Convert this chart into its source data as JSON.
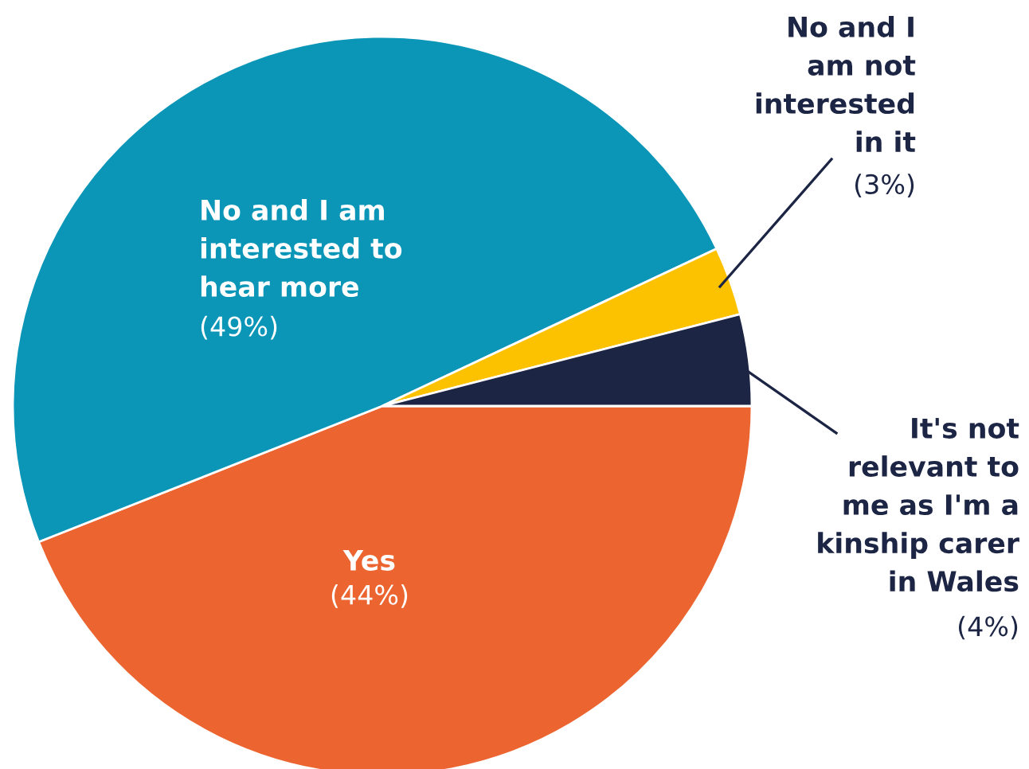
{
  "chart_data": {
    "type": "pie",
    "categories": [
      "Yes",
      "No and I am\ninterested to\nhear more",
      "No and I\nam not\ninterested\nin it",
      "It's not\nrelevant to\nme as I'm a\nkinship carer\nin Wales"
    ],
    "values": [
      44,
      49,
      3,
      4
    ],
    "colors": [
      "#ec6530",
      "#0b96b8",
      "#fcc200",
      "#1d2545"
    ],
    "value_labels": [
      "(44%)",
      "(49%)",
      "(3%)",
      "(4%)"
    ]
  }
}
